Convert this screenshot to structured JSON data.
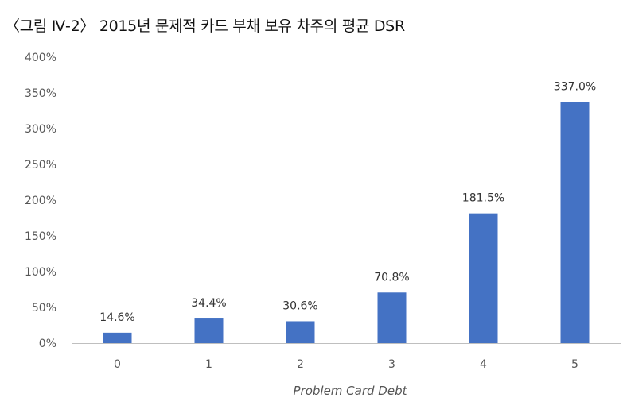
{
  "chart_data": {
    "type": "bar",
    "title": "〈그림 Ⅳ-2〉 2015년 문제적 카드 부채 보유 차주의 평균 DSR",
    "xlabel": "Problem Card Debt",
    "ylabel": "",
    "categories": [
      "0",
      "1",
      "2",
      "3",
      "4",
      "5"
    ],
    "values": [
      14.6,
      34.4,
      30.6,
      70.8,
      181.5,
      337.0
    ],
    "data_labels": [
      "14.6%",
      "34.4%",
      "30.6%",
      "70.8%",
      "181.5%",
      "337.0%"
    ],
    "ylim": [
      0,
      400
    ],
    "yticks": [
      0,
      50,
      100,
      150,
      200,
      250,
      300,
      350,
      400
    ],
    "ytick_labels": [
      "0%",
      "50%",
      "100%",
      "150%",
      "200%",
      "250%",
      "300%",
      "350%",
      "400%"
    ],
    "bar_color": "#4472C4",
    "grid": false,
    "legend": "none"
  }
}
